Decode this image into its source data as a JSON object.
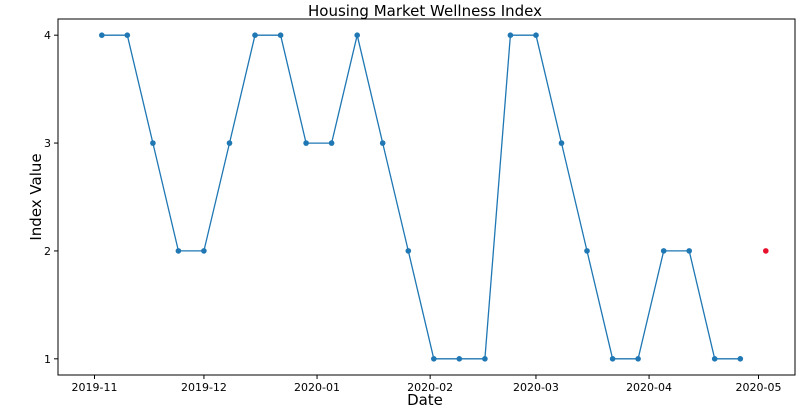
{
  "chart_data": {
    "type": "line",
    "title": "Housing Market Wellness Index",
    "xlabel": "Date",
    "ylabel": "Index Value",
    "x_ticks": [
      "2019-11",
      "2019-12",
      "2020-01",
      "2020-02",
      "2020-03",
      "2020-04",
      "2020-05"
    ],
    "x_tick_dates": [
      "2019-11-01",
      "2019-12-01",
      "2020-01-01",
      "2020-02-01",
      "2020-03-01",
      "2020-04-01",
      "2020-05-01"
    ],
    "y_ticks": [
      1,
      2,
      3,
      4
    ],
    "xlim": [
      "2019-10-22",
      "2020-05-11"
    ],
    "ylim": [
      0.85,
      4.15
    ],
    "grid": false,
    "series": [
      {
        "color": "#1f77b4",
        "x": [
          "2019-11-03",
          "2019-11-10",
          "2019-11-17",
          "2019-11-24",
          "2019-12-01",
          "2019-12-08",
          "2019-12-15",
          "2019-12-22",
          "2019-12-29",
          "2020-01-05",
          "2020-01-12",
          "2020-01-19",
          "2020-01-26",
          "2020-02-02",
          "2020-02-09",
          "2020-02-16",
          "2020-02-23",
          "2020-03-01",
          "2020-03-08",
          "2020-03-15",
          "2020-03-22",
          "2020-03-29",
          "2020-04-05",
          "2020-04-12",
          "2020-04-19",
          "2020-04-26"
        ],
        "values": [
          4,
          4,
          3,
          2,
          2,
          3,
          4,
          4,
          3,
          3,
          4,
          3,
          2,
          1,
          1,
          1,
          4,
          4,
          3,
          2,
          1,
          1,
          2,
          2,
          1,
          1
        ]
      },
      {
        "color": "#e8112d",
        "x": [
          "2020-05-03"
        ],
        "values": [
          2
        ],
        "markers_only": true
      }
    ]
  }
}
